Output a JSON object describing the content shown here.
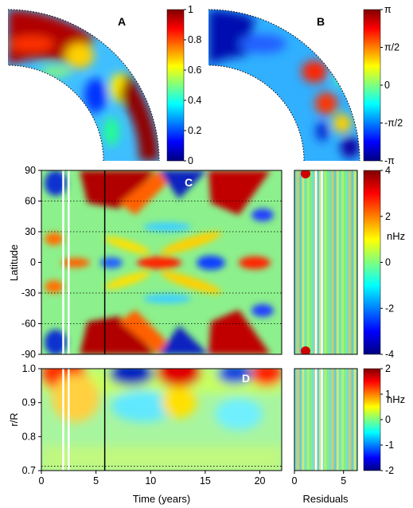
{
  "chart_data": [
    {
      "type": "heatmap",
      "panel": "A",
      "geometry": "quarter-disk meridional plane",
      "colorbar": {
        "range": [
          0,
          1
        ],
        "ticks": [
          "1",
          "0.8",
          "0.6",
          "0.4",
          "0.2",
          "0"
        ],
        "colormap": "jet"
      }
    },
    {
      "type": "heatmap",
      "panel": "B",
      "geometry": "quarter-disk meridional plane",
      "colorbar": {
        "range": [
          -3.1416,
          3.1416
        ],
        "ticks": [
          "π",
          "π/2",
          "0",
          "-π/2",
          "-π"
        ],
        "colormap": "jet"
      }
    },
    {
      "type": "heatmap",
      "panel": "C",
      "xlim": [
        0,
        22
      ],
      "ylim": [
        -90,
        90
      ],
      "ylabel": "Latitude",
      "yticks": [
        "90",
        "60",
        "30",
        "0",
        "-30",
        "-60",
        "-90"
      ],
      "yvals": [
        90,
        60,
        30,
        0,
        -30,
        -60,
        -90
      ],
      "dotted_lat": [
        60,
        30,
        -30,
        -60
      ],
      "white_lines_years": [
        2.0,
        2.5
      ],
      "black_line_year": 5.8,
      "colorbar": {
        "range": [
          -4,
          4
        ],
        "ticks": [
          "4",
          "2",
          "0",
          "-2",
          "-4"
        ],
        "unit": "nHz",
        "colormap": "jet"
      },
      "equator_maxima_years": [
        4.5,
        11.4,
        18.6
      ],
      "polar_max_years": [
        8,
        14,
        19.5
      ]
    },
    {
      "type": "heatmap",
      "panel": "D",
      "xlim": [
        0,
        22
      ],
      "ylim": [
        0.7,
        1.0
      ],
      "xlabel": "Time (years)",
      "ylabel": "r/R",
      "xticks": [
        "0",
        "5",
        "10",
        "15",
        "20"
      ],
      "xvals": [
        0,
        5,
        10,
        15,
        20
      ],
      "yticks": [
        "1.0",
        "0.9",
        "0.8",
        "0.7"
      ],
      "yvals": [
        1.0,
        0.9,
        0.8,
        0.7
      ],
      "dotted_r": [
        0.713
      ],
      "colorbar": {
        "range": [
          -2,
          2
        ],
        "ticks": [
          "2",
          "1",
          "0",
          "-1",
          "-2"
        ],
        "unit": "nHz",
        "colormap": "jet"
      },
      "surface_maxima_years": [
        3,
        12.8,
        20.5
      ],
      "surface_minima_years": [
        8,
        17.2
      ]
    },
    {
      "type": "heatmap",
      "panel": "Residuals",
      "xlabel": "Residuals",
      "xlim": [
        0,
        6.4
      ],
      "xticks": [
        "0",
        "5"
      ],
      "xvals": [
        0,
        5
      ],
      "white_lines": [
        2.2,
        2.8
      ]
    }
  ],
  "labels": {
    "panel_a": "A",
    "panel_b": "B",
    "panel_c": "C",
    "panel_d": "D",
    "unit_c": "nHz",
    "unit_d": "nHz",
    "xlabel": "Time (years)",
    "ylabel_c": "Latitude",
    "ylabel_d": "r/R",
    "xlabel_residuals": "Residuals"
  },
  "colors": {
    "dark_blue": "#00007f",
    "blue": "#0050ff",
    "cyan": "#00e0ff",
    "green": "#7fff7f",
    "yellow": "#ffe000",
    "red": "#ff2000",
    "dark_red": "#7f0000"
  }
}
